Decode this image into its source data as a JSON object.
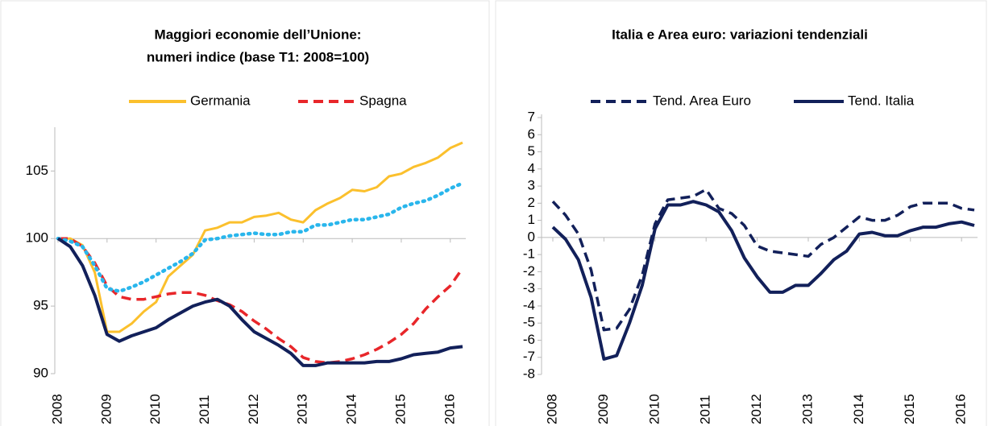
{
  "chart_data": [
    {
      "type": "line",
      "title": [
        "Maggiori economie dell’Unione:",
        "numeri indice (base T1: 2008=100)"
      ],
      "categories": [
        "2008",
        null,
        null,
        null,
        "2009",
        null,
        null,
        null,
        "2010",
        null,
        null,
        null,
        "2011",
        null,
        null,
        null,
        "2012",
        null,
        null,
        null,
        "2013",
        null,
        null,
        null,
        "2014",
        null,
        null,
        null,
        "2015",
        null,
        null,
        null,
        "2016",
        null
      ],
      "ylim": [
        90,
        108
      ],
      "yticks": [
        90,
        95,
        100,
        105
      ],
      "x_axis_crosses": 100,
      "series": [
        {
          "name": "Germania",
          "color": "#fbc02d",
          "style": "solid",
          "values": [
            100,
            100,
            99.5,
            97.5,
            93.1,
            93.1,
            93.7,
            94.6,
            95.3,
            97.2,
            98.0,
            98.8,
            100.6,
            100.8,
            101.2,
            101.2,
            101.6,
            101.7,
            101.9,
            101.4,
            101.2,
            102.1,
            102.6,
            103.0,
            103.6,
            103.5,
            103.8,
            104.6,
            104.8,
            105.3,
            105.6,
            106.0,
            106.7,
            107.1
          ]
        },
        {
          "name": "Spagna",
          "color": "#e8262a",
          "style": "dashed",
          "values": [
            100,
            100,
            99.4,
            98.2,
            96.5,
            95.7,
            95.5,
            95.5,
            95.7,
            95.9,
            96.0,
            96.0,
            95.8,
            95.4,
            95.1,
            94.6,
            93.9,
            93.3,
            92.6,
            92.0,
            91.2,
            90.9,
            90.8,
            90.9,
            91.1,
            91.4,
            91.8,
            92.3,
            92.9,
            93.7,
            94.8,
            95.7,
            96.5,
            97.8
          ]
        },
        {
          "color": "#29b6ec",
          "style": "dotted",
          "values": [
            100,
            99.8,
            99.4,
            98.0,
            96.3,
            96.1,
            96.4,
            96.8,
            97.3,
            97.8,
            98.3,
            98.9,
            99.9,
            100.0,
            100.2,
            100.3,
            100.4,
            100.3,
            100.3,
            100.5,
            100.5,
            101.0,
            101.0,
            101.2,
            101.4,
            101.4,
            101.6,
            101.8,
            102.3,
            102.6,
            102.8,
            103.2,
            103.7,
            104.1
          ]
        },
        {
          "color": "#12205a",
          "style": "solid",
          "values": [
            100,
            99.4,
            98.0,
            95.8,
            92.9,
            92.4,
            92.8,
            93.1,
            93.4,
            94.0,
            94.5,
            95.0,
            95.3,
            95.5,
            95.0,
            94.0,
            93.1,
            92.6,
            92.1,
            91.5,
            90.6,
            90.6,
            90.8,
            90.8,
            90.8,
            90.8,
            90.9,
            90.9,
            91.1,
            91.4,
            91.5,
            91.6,
            91.9,
            92.0
          ]
        }
      ]
    },
    {
      "type": "line",
      "title": [
        "Italia e Area euro: variazioni tendenziali"
      ],
      "categories": [
        "2008",
        null,
        null,
        null,
        "2009",
        null,
        null,
        null,
        "2010",
        null,
        null,
        null,
        "2011",
        null,
        null,
        null,
        "2012",
        null,
        null,
        null,
        "2013",
        null,
        null,
        null,
        "2014",
        null,
        null,
        null,
        "2015",
        null,
        null,
        null,
        "2016",
        null
      ],
      "ylim": [
        -8,
        7
      ],
      "yticks": [
        -8,
        -7,
        -6,
        -5,
        -4,
        -3,
        -2,
        -1,
        0,
        1,
        2,
        3,
        4,
        5,
        6,
        7
      ],
      "x_axis_crosses": 0,
      "series": [
        {
          "name": "Tend. Area Euro",
          "color": "#12205a",
          "style": "dashed",
          "values": [
            2.1,
            1.3,
            0.2,
            -1.9,
            -5.4,
            -5.3,
            -4.2,
            -2.2,
            0.8,
            2.2,
            2.3,
            2.4,
            2.8,
            1.7,
            1.4,
            0.7,
            -0.5,
            -0.8,
            -0.9,
            -1.0,
            -1.1,
            -0.4,
            0,
            0.6,
            1.2,
            1.0,
            1.0,
            1.3,
            1.8,
            2.0,
            2.0,
            2.0,
            1.7,
            1.6
          ]
        },
        {
          "name": "Tend. Italia",
          "color": "#12205a",
          "style": "solid",
          "values": [
            0.6,
            -0.1,
            -1.3,
            -3.5,
            -7.1,
            -6.9,
            -5.0,
            -2.8,
            0.5,
            1.9,
            1.9,
            2.1,
            1.9,
            1.5,
            0.4,
            -1.2,
            -2.3,
            -3.2,
            -3.2,
            -2.8,
            -2.8,
            -2.1,
            -1.3,
            -0.8,
            0.2,
            0.3,
            0.1,
            0.1,
            0.4,
            0.6,
            0.6,
            0.8,
            0.9,
            0.7
          ]
        }
      ]
    }
  ]
}
